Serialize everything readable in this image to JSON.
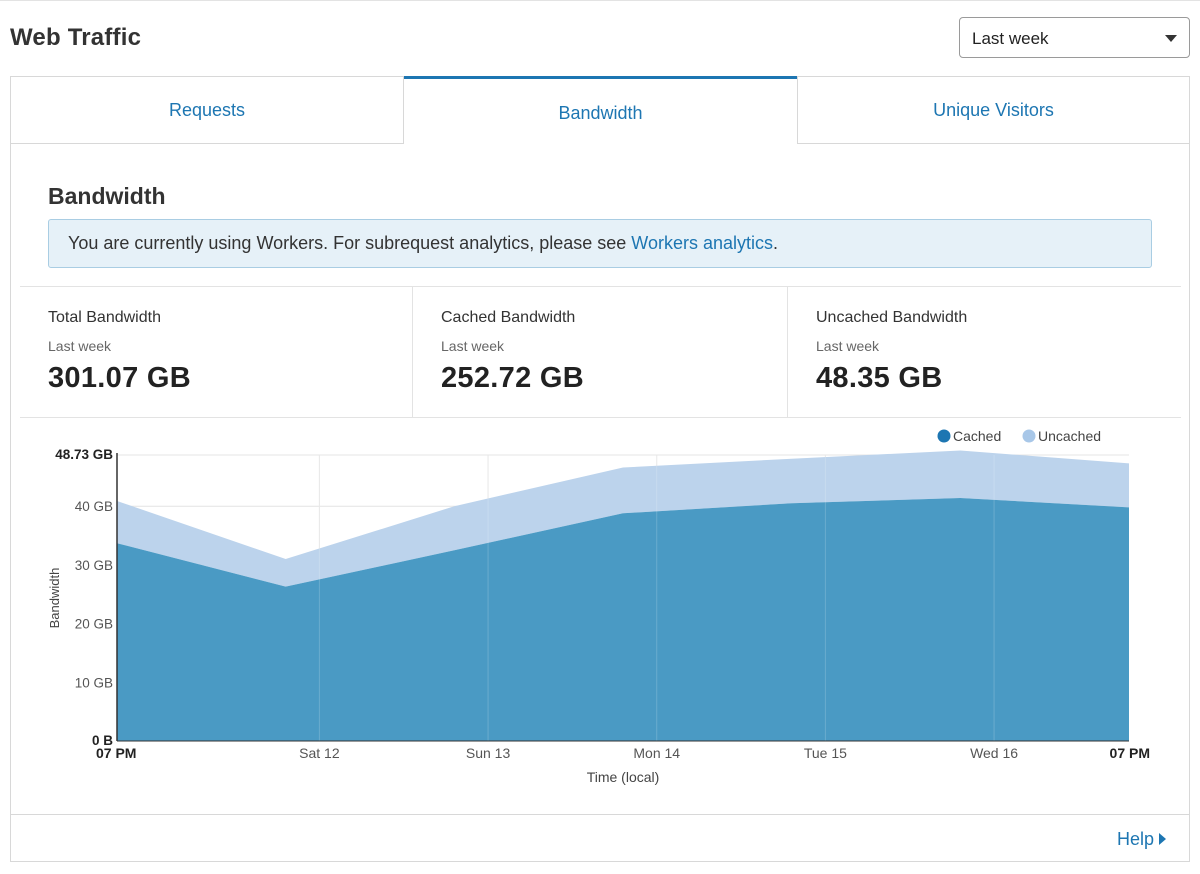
{
  "header": {
    "title": "Web Traffic",
    "range_select": {
      "value": "Last week"
    }
  },
  "tabs": [
    {
      "label": "Requests",
      "active": false
    },
    {
      "label": "Bandwidth",
      "active": true
    },
    {
      "label": "Unique Visitors",
      "active": false
    }
  ],
  "section": {
    "title": "Bandwidth",
    "notice": {
      "text": "You are currently using Workers. For subrequest analytics, please see ",
      "link": "Workers analytics",
      "suffix": "."
    }
  },
  "stats": [
    {
      "label": "Total Bandwidth",
      "period": "Last week",
      "value": "301.07 GB"
    },
    {
      "label": "Cached Bandwidth",
      "period": "Last week",
      "value": "252.72 GB"
    },
    {
      "label": "Uncached Bandwidth",
      "period": "Last week",
      "value": "48.35 GB"
    }
  ],
  "chart_data": {
    "type": "area",
    "stacked": true,
    "ylabel": "Bandwidth",
    "xlabel": "Time (local)",
    "ylim": [
      0,
      48.73
    ],
    "y_ticks": [
      "0 B",
      "10 GB",
      "20 GB",
      "30 GB",
      "40 GB",
      "48.73 GB"
    ],
    "x_ticks": [
      "07 PM",
      "Sat 12",
      "Sun 13",
      "Mon 14",
      "Tue 15",
      "Wed 16",
      "07 PM"
    ],
    "x": [
      0,
      1,
      2,
      3,
      4,
      5,
      6
    ],
    "series": [
      {
        "name": "Cached",
        "color": "#4a9ac4",
        "legend_color": "#1d76b2",
        "values": [
          33.7,
          26.3,
          32.5,
          38.8,
          40.5,
          41.4,
          39.8
        ]
      },
      {
        "name": "Uncached",
        "color": "#bcd3ec",
        "legend_color": "#a8c7e8",
        "values": [
          7.2,
          4.7,
          7.5,
          7.8,
          7.6,
          8.1,
          7.5
        ]
      }
    ],
    "legend_position": "top-right",
    "grid": true
  },
  "footer": {
    "help": "Help"
  }
}
